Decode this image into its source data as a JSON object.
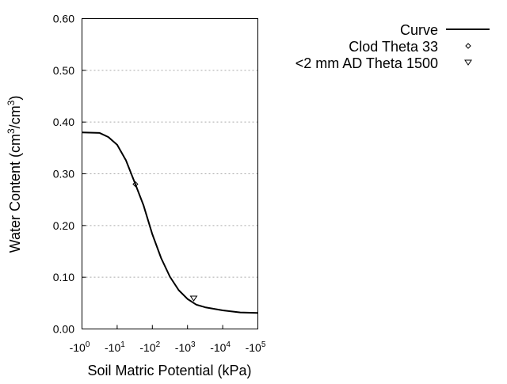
{
  "chart_data": {
    "type": "line",
    "xlabel": "Soil Matric Potential (kPa)",
    "ylabel": "Water Content (cm3/cm3)",
    "ylabel_parts": {
      "a": "Water Content (cm",
      "sup1": "3",
      "b": "/cm",
      "sup2": "3",
      "c": ")"
    },
    "x_scale": "log (negative)",
    "xlim_log10_abs": [
      0,
      5
    ],
    "x_ticks": [
      {
        "base": "-10",
        "exp": "0"
      },
      {
        "base": "-10",
        "exp": "1"
      },
      {
        "base": "-10",
        "exp": "2"
      },
      {
        "base": "-10",
        "exp": "3"
      },
      {
        "base": "-10",
        "exp": "4"
      },
      {
        "base": "-10",
        "exp": "5"
      }
    ],
    "ylim": [
      0,
      0.6
    ],
    "y_ticks": [
      "0.00",
      "0.10",
      "0.20",
      "0.30",
      "0.40",
      "0.50",
      "0.60"
    ],
    "grid": "horizontal dotted",
    "legend_position": "top-right outside",
    "series": [
      {
        "name": "Curve",
        "style": "line",
        "x_kpa": [
          -1,
          -3.16,
          -5.62,
          -10,
          -17.8,
          -31.6,
          -56.2,
          -100,
          -178,
          -316,
          -562,
          -1000,
          -1778,
          -3162,
          -10000,
          -31623,
          -100000
        ],
        "y": [
          0.38,
          0.379,
          0.371,
          0.356,
          0.326,
          0.283,
          0.239,
          0.183,
          0.137,
          0.101,
          0.075,
          0.058,
          0.047,
          0.042,
          0.036,
          0.032,
          0.031
        ]
      },
      {
        "name": "Clod Theta 33",
        "style": "diamond",
        "x_kpa": [
          -33
        ],
        "y": [
          0.28
        ]
      },
      {
        "name": "<2 mm AD Theta 1500",
        "style": "triangle-down",
        "x_kpa": [
          -1500
        ],
        "y": [
          0.059
        ]
      }
    ]
  }
}
